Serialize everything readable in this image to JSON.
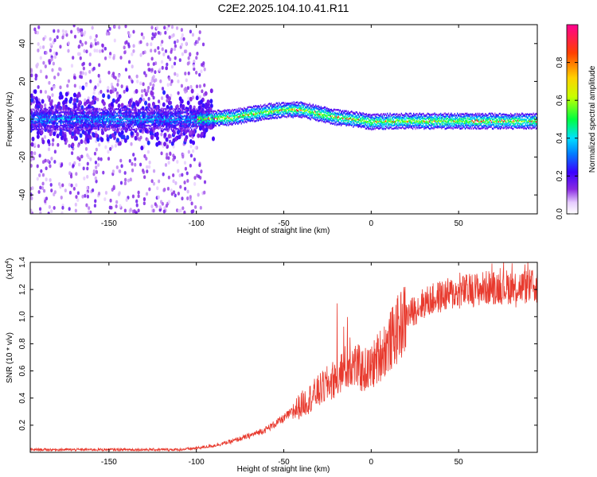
{
  "title": "C2E2.2025.104.10.41.R11",
  "chart_data": [
    {
      "type": "heatmap",
      "xlabel": "Height of straight line (km)",
      "ylabel": "Frequency (Hz)",
      "xlim": [
        -195,
        95
      ],
      "ylim": [
        -50,
        50
      ],
      "xticks": [
        -150,
        -100,
        -50,
        0,
        50
      ],
      "yticks": [
        -40,
        -20,
        0,
        20,
        40
      ],
      "ridge": {
        "x": [
          -195,
          -150,
          -100,
          -80,
          -70,
          -60,
          -50,
          -40,
          -30,
          -20,
          -10,
          0,
          10,
          30,
          50,
          70,
          95
        ],
        "freq": [
          0,
          0,
          0,
          1,
          2.5,
          4,
          5,
          5,
          3,
          1,
          0,
          -1.5,
          -1,
          -1,
          -1,
          -1,
          -1
        ]
      },
      "colorbar": {
        "label": "Normalized spectral amplitude",
        "range": [
          0,
          1
        ],
        "ticks": [
          0.0,
          0.2,
          0.4,
          0.6,
          0.8
        ],
        "tick_labels": [
          "0.0",
          "0.2",
          "0.4",
          "0.6",
          "0.8"
        ],
        "colormap": "rainbow"
      }
    },
    {
      "type": "line",
      "xlabel": "Height of straight line (km)",
      "ylabel": "SNR (10 * v/v)",
      "y_multiplier_label": "(x10",
      "y_multiplier_exp": "4",
      "y_multiplier_close": ")",
      "xlim": [
        -195,
        95
      ],
      "ylim": [
        0,
        1.4
      ],
      "xticks": [
        -150,
        -100,
        -50,
        0,
        50
      ],
      "yticks": [
        0.2,
        0.4,
        0.6,
        0.8,
        1.0,
        1.2,
        1.4
      ],
      "ytick_labels": [
        "0.2",
        "0.4",
        "0.6",
        "0.8",
        "1.0",
        "1.2",
        "1.4"
      ],
      "color": "#e83a2e",
      "series": [
        {
          "x": [
            -195,
            -150,
            -110,
            -100,
            -90,
            -80,
            -70,
            -60,
            -50,
            -45,
            -40,
            -35,
            -30,
            -25,
            -20,
            -15,
            -10,
            -5,
            0,
            5,
            10,
            15,
            20,
            25,
            30,
            40,
            50,
            60,
            70,
            80,
            95
          ],
          "values": [
            0.02,
            0.02,
            0.02,
            0.03,
            0.05,
            0.08,
            0.12,
            0.17,
            0.25,
            0.3,
            0.35,
            0.4,
            0.45,
            0.5,
            0.55,
            0.62,
            0.65,
            0.6,
            0.62,
            0.72,
            0.8,
            0.9,
            1.0,
            1.05,
            1.1,
            1.15,
            1.18,
            1.2,
            1.22,
            1.22,
            1.22
          ]
        }
      ]
    }
  ]
}
